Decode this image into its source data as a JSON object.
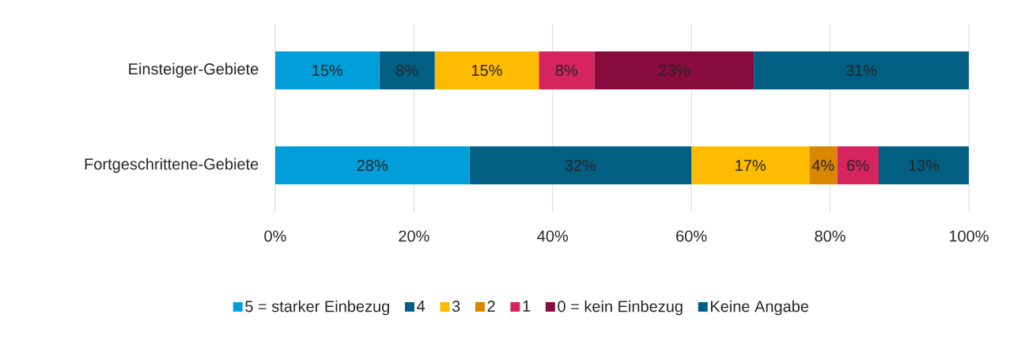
{
  "chart_data": {
    "type": "bar",
    "orientation": "horizontal",
    "stacked": true,
    "categories": [
      "Einsteiger-Gebiete",
      "Fortgeschrittene-Gebiete"
    ],
    "series": [
      {
        "name": "5 = starker Einbezug",
        "color": "#009fda",
        "values": [
          15,
          28
        ],
        "value_labels": [
          "15%",
          "28%"
        ]
      },
      {
        "name": "4",
        "color": "#005f83",
        "values": [
          8,
          32
        ],
        "value_labels": [
          "8%",
          "32%"
        ]
      },
      {
        "name": "3",
        "color": "#ffbb00",
        "values": [
          15,
          17
        ],
        "value_labels": [
          "15%",
          "17%"
        ]
      },
      {
        "name": "2",
        "color": "#d98600",
        "values": [
          0,
          4
        ],
        "value_labels": [
          null,
          "4%"
        ]
      },
      {
        "name": "1",
        "color": "#d6245e",
        "values": [
          8,
          6
        ],
        "value_labels": [
          "8%",
          "6%"
        ]
      },
      {
        "name": "0 = kein Einbezug",
        "color": "#870b3d",
        "values": [
          23,
          0
        ],
        "value_labels": [
          "23%",
          null
        ]
      },
      {
        "name": "Keine Angabe",
        "color": "#005f83",
        "values": [
          31,
          13
        ],
        "value_labels": [
          "31%",
          "13%"
        ]
      }
    ],
    "xlim": [
      0,
      100
    ],
    "xticks": [
      {
        "value": 0,
        "label": "0%"
      },
      {
        "value": 20,
        "label": "20%"
      },
      {
        "value": 40,
        "label": "40%"
      },
      {
        "value": 60,
        "label": "60%"
      },
      {
        "value": 80,
        "label": "80%"
      },
      {
        "value": 100,
        "label": "100%"
      }
    ],
    "grid": "x",
    "legend": "bottom"
  }
}
